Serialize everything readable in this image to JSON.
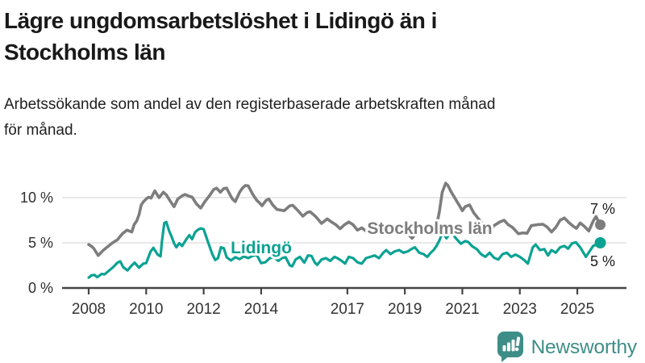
{
  "header": {
    "title_lines": [
      "Lägre ungdomsarbetslöshet i Lidingö än i",
      "Stockholms län"
    ],
    "subtitle_lines": [
      "Arbetssökande som andel av den registerbaserade arbetskraften månad",
      "för månad."
    ]
  },
  "chart_data": {
    "type": "line",
    "title": "Lägre ungdomsarbetslöshet i Lidingö än i Stockholms län",
    "xlabel": "",
    "ylabel": "",
    "grid": "horizontal",
    "legend_position": "inline-labels",
    "xlim": [
      2007.1,
      2026.7
    ],
    "ylim": [
      0,
      12
    ],
    "y_ticks": [
      {
        "value": 0,
        "label": "0 %"
      },
      {
        "value": 5,
        "label": "5 %"
      },
      {
        "value": 10,
        "label": "10 %"
      }
    ],
    "x_ticks": [
      {
        "year": 2008,
        "label": "2008"
      },
      {
        "year": 2010,
        "label": "2010"
      },
      {
        "year": 2012,
        "label": "2012"
      },
      {
        "year": 2014,
        "label": "2014"
      },
      {
        "year": 2017,
        "label": "2017"
      },
      {
        "year": 2019,
        "label": "2019"
      },
      {
        "year": 2021,
        "label": "2021"
      },
      {
        "year": 2023,
        "label": "2023"
      },
      {
        "year": 2025,
        "label": "2025"
      }
    ],
    "series": [
      {
        "name": "Stockholms län",
        "color": "#7d7d7d",
        "end_label": "7 %",
        "end_value": 7,
        "points": [
          [
            2008.0,
            4.8
          ],
          [
            2008.08,
            4.65
          ],
          [
            2008.17,
            4.4
          ],
          [
            2008.33,
            3.6
          ],
          [
            2008.5,
            4.15
          ],
          [
            2008.67,
            4.6
          ],
          [
            2008.83,
            5.0
          ],
          [
            2009.0,
            5.35
          ],
          [
            2009.17,
            6.0
          ],
          [
            2009.33,
            6.4
          ],
          [
            2009.5,
            6.2
          ],
          [
            2009.58,
            7.0
          ],
          [
            2009.67,
            7.4
          ],
          [
            2009.75,
            8.1
          ],
          [
            2009.83,
            9.2
          ],
          [
            2009.92,
            9.6
          ],
          [
            2010.0,
            9.85
          ],
          [
            2010.08,
            10.05
          ],
          [
            2010.17,
            9.95
          ],
          [
            2010.3,
            10.75
          ],
          [
            2010.45,
            10.0
          ],
          [
            2010.6,
            10.6
          ],
          [
            2010.7,
            10.3
          ],
          [
            2010.85,
            9.55
          ],
          [
            2010.97,
            9.0
          ],
          [
            2011.1,
            9.85
          ],
          [
            2011.25,
            10.2
          ],
          [
            2011.35,
            10.35
          ],
          [
            2011.5,
            10.15
          ],
          [
            2011.6,
            10.05
          ],
          [
            2011.75,
            9.3
          ],
          [
            2011.9,
            8.85
          ],
          [
            2012.05,
            9.6
          ],
          [
            2012.2,
            10.2
          ],
          [
            2012.35,
            10.9
          ],
          [
            2012.45,
            11.05
          ],
          [
            2012.58,
            10.6
          ],
          [
            2012.7,
            11.0
          ],
          [
            2012.8,
            11.05
          ],
          [
            2012.92,
            10.3
          ],
          [
            2013.0,
            9.85
          ],
          [
            2013.1,
            9.55
          ],
          [
            2013.25,
            10.6
          ],
          [
            2013.35,
            11.05
          ],
          [
            2013.45,
            11.35
          ],
          [
            2013.55,
            11.3
          ],
          [
            2013.67,
            10.6
          ],
          [
            2013.75,
            10.15
          ],
          [
            2013.85,
            9.7
          ],
          [
            2013.95,
            9.4
          ],
          [
            2014.03,
            9.1
          ],
          [
            2014.17,
            9.7
          ],
          [
            2014.27,
            9.85
          ],
          [
            2014.4,
            9.2
          ],
          [
            2014.55,
            8.7
          ],
          [
            2014.8,
            8.55
          ],
          [
            2015.0,
            9.1
          ],
          [
            2015.1,
            9.15
          ],
          [
            2015.3,
            8.5
          ],
          [
            2015.45,
            7.95
          ],
          [
            2015.6,
            8.35
          ],
          [
            2015.7,
            8.45
          ],
          [
            2015.9,
            7.9
          ],
          [
            2016.1,
            7.15
          ],
          [
            2016.3,
            7.65
          ],
          [
            2016.45,
            7.3
          ],
          [
            2016.6,
            7.0
          ],
          [
            2016.75,
            6.55
          ],
          [
            2016.9,
            7.0
          ],
          [
            2017.05,
            7.3
          ],
          [
            2017.2,
            7.0
          ],
          [
            2017.35,
            6.4
          ],
          [
            2017.5,
            6.65
          ],
          [
            2017.65,
            6.3
          ],
          [
            2017.8,
            6.6
          ],
          [
            2017.95,
            6.2
          ],
          [
            2018.1,
            6.65
          ],
          [
            2018.25,
            6.9
          ],
          [
            2018.4,
            6.6
          ],
          [
            2018.55,
            6.3
          ],
          [
            2018.7,
            6.6
          ],
          [
            2018.85,
            6.4
          ],
          [
            2019.0,
            6.15
          ],
          [
            2019.15,
            5.85
          ],
          [
            2019.25,
            5.5
          ],
          [
            2019.4,
            6.1
          ],
          [
            2019.55,
            6.4
          ],
          [
            2019.7,
            6.75
          ],
          [
            2019.85,
            6.4
          ],
          [
            2019.95,
            6.2
          ],
          [
            2020.08,
            6.6
          ],
          [
            2020.2,
            8.4
          ],
          [
            2020.3,
            10.6
          ],
          [
            2020.42,
            11.6
          ],
          [
            2020.5,
            11.35
          ],
          [
            2020.6,
            10.7
          ],
          [
            2020.75,
            9.9
          ],
          [
            2020.9,
            9.1
          ],
          [
            2021.0,
            8.55
          ],
          [
            2021.1,
            9.0
          ],
          [
            2021.25,
            9.2
          ],
          [
            2021.4,
            8.3
          ],
          [
            2021.55,
            7.7
          ],
          [
            2021.7,
            7.1
          ],
          [
            2021.85,
            6.9
          ],
          [
            2021.97,
            6.35
          ],
          [
            2022.1,
            6.9
          ],
          [
            2022.3,
            7.3
          ],
          [
            2022.45,
            7.5
          ],
          [
            2022.6,
            7.0
          ],
          [
            2022.75,
            6.7
          ],
          [
            2022.95,
            6.0
          ],
          [
            2023.1,
            6.1
          ],
          [
            2023.25,
            6.05
          ],
          [
            2023.4,
            6.9
          ],
          [
            2023.6,
            7.0
          ],
          [
            2023.8,
            7.05
          ],
          [
            2023.95,
            6.75
          ],
          [
            2024.1,
            6.2
          ],
          [
            2024.25,
            6.7
          ],
          [
            2024.4,
            7.5
          ],
          [
            2024.55,
            7.75
          ],
          [
            2024.7,
            7.25
          ],
          [
            2024.85,
            6.85
          ],
          [
            2024.97,
            6.6
          ],
          [
            2025.1,
            7.2
          ],
          [
            2025.25,
            6.8
          ],
          [
            2025.4,
            6.3
          ],
          [
            2025.55,
            7.4
          ],
          [
            2025.65,
            7.9
          ],
          [
            2025.8,
            7.0
          ]
        ]
      },
      {
        "name": "Lidingö",
        "color": "#0ba293",
        "end_label": "5 %",
        "end_value": 5,
        "points": [
          [
            2008.0,
            1.15
          ],
          [
            2008.1,
            1.4
          ],
          [
            2008.2,
            1.45
          ],
          [
            2008.3,
            1.2
          ],
          [
            2008.45,
            1.55
          ],
          [
            2008.55,
            1.5
          ],
          [
            2008.7,
            1.9
          ],
          [
            2008.85,
            2.3
          ],
          [
            2009.0,
            2.8
          ],
          [
            2009.1,
            2.95
          ],
          [
            2009.2,
            2.3
          ],
          [
            2009.35,
            1.95
          ],
          [
            2009.5,
            2.5
          ],
          [
            2009.6,
            2.8
          ],
          [
            2009.75,
            2.25
          ],
          [
            2009.9,
            2.7
          ],
          [
            2010.0,
            2.75
          ],
          [
            2010.15,
            4.0
          ],
          [
            2010.25,
            4.45
          ],
          [
            2010.4,
            3.7
          ],
          [
            2010.5,
            3.5
          ],
          [
            2010.55,
            5.2
          ],
          [
            2010.63,
            7.2
          ],
          [
            2010.7,
            7.3
          ],
          [
            2010.8,
            6.3
          ],
          [
            2010.9,
            5.55
          ],
          [
            2010.97,
            4.95
          ],
          [
            2011.05,
            4.5
          ],
          [
            2011.15,
            4.95
          ],
          [
            2011.25,
            4.65
          ],
          [
            2011.4,
            5.4
          ],
          [
            2011.5,
            5.85
          ],
          [
            2011.6,
            5.4
          ],
          [
            2011.7,
            6.15
          ],
          [
            2011.8,
            6.45
          ],
          [
            2011.9,
            6.6
          ],
          [
            2012.0,
            6.5
          ],
          [
            2012.1,
            5.55
          ],
          [
            2012.2,
            4.65
          ],
          [
            2012.3,
            3.75
          ],
          [
            2012.4,
            3.1
          ],
          [
            2012.5,
            3.3
          ],
          [
            2012.6,
            4.5
          ],
          [
            2012.7,
            4.4
          ],
          [
            2012.8,
            3.4
          ],
          [
            2012.95,
            3.05
          ],
          [
            2013.1,
            3.4
          ],
          [
            2013.25,
            3.2
          ],
          [
            2013.4,
            3.5
          ],
          [
            2013.55,
            3.3
          ],
          [
            2013.7,
            3.55
          ],
          [
            2013.85,
            3.65
          ],
          [
            2014.0,
            2.75
          ],
          [
            2014.15,
            2.85
          ],
          [
            2014.3,
            3.3
          ],
          [
            2014.45,
            3.4
          ],
          [
            2014.6,
            3.0
          ],
          [
            2014.72,
            3.3
          ],
          [
            2014.85,
            3.4
          ],
          [
            2015.0,
            2.5
          ],
          [
            2015.08,
            2.4
          ],
          [
            2015.2,
            3.15
          ],
          [
            2015.35,
            3.45
          ],
          [
            2015.5,
            2.8
          ],
          [
            2015.63,
            3.6
          ],
          [
            2015.75,
            3.55
          ],
          [
            2015.87,
            2.8
          ],
          [
            2015.95,
            2.55
          ],
          [
            2016.1,
            3.15
          ],
          [
            2016.25,
            3.3
          ],
          [
            2016.4,
            3.0
          ],
          [
            2016.55,
            3.45
          ],
          [
            2016.65,
            3.3
          ],
          [
            2016.8,
            3.0
          ],
          [
            2016.92,
            2.7
          ],
          [
            2017.05,
            3.45
          ],
          [
            2017.2,
            3.3
          ],
          [
            2017.35,
            2.85
          ],
          [
            2017.5,
            2.7
          ],
          [
            2017.65,
            3.3
          ],
          [
            2017.8,
            3.45
          ],
          [
            2017.95,
            3.6
          ],
          [
            2018.1,
            3.3
          ],
          [
            2018.25,
            3.9
          ],
          [
            2018.35,
            4.2
          ],
          [
            2018.5,
            3.75
          ],
          [
            2018.65,
            4.05
          ],
          [
            2018.8,
            4.2
          ],
          [
            2018.95,
            3.9
          ],
          [
            2019.1,
            4.05
          ],
          [
            2019.25,
            4.35
          ],
          [
            2019.35,
            4.5
          ],
          [
            2019.5,
            3.9
          ],
          [
            2019.65,
            3.75
          ],
          [
            2019.78,
            3.45
          ],
          [
            2019.9,
            3.9
          ],
          [
            2020.0,
            4.2
          ],
          [
            2020.1,
            4.65
          ],
          [
            2020.2,
            5.25
          ],
          [
            2020.32,
            6.2
          ],
          [
            2020.45,
            5.5
          ],
          [
            2020.55,
            6.0
          ],
          [
            2020.68,
            5.9
          ],
          [
            2020.8,
            5.4
          ],
          [
            2020.95,
            4.9
          ],
          [
            2021.1,
            5.2
          ],
          [
            2021.2,
            5.1
          ],
          [
            2021.35,
            4.6
          ],
          [
            2021.5,
            4.3
          ],
          [
            2021.65,
            3.75
          ],
          [
            2021.8,
            3.45
          ],
          [
            2021.95,
            3.9
          ],
          [
            2022.1,
            3.35
          ],
          [
            2022.25,
            3.15
          ],
          [
            2022.4,
            3.75
          ],
          [
            2022.55,
            3.9
          ],
          [
            2022.7,
            3.45
          ],
          [
            2022.85,
            3.7
          ],
          [
            2023.0,
            3.45
          ],
          [
            2023.15,
            3.1
          ],
          [
            2023.28,
            2.7
          ],
          [
            2023.45,
            4.5
          ],
          [
            2023.55,
            4.8
          ],
          [
            2023.7,
            4.2
          ],
          [
            2023.85,
            4.3
          ],
          [
            2023.98,
            3.6
          ],
          [
            2024.1,
            4.2
          ],
          [
            2024.25,
            3.9
          ],
          [
            2024.4,
            4.5
          ],
          [
            2024.55,
            4.65
          ],
          [
            2024.68,
            4.35
          ],
          [
            2024.82,
            4.95
          ],
          [
            2024.95,
            5.05
          ],
          [
            2025.1,
            4.5
          ],
          [
            2025.3,
            3.45
          ],
          [
            2025.55,
            4.65
          ],
          [
            2025.8,
            5.0
          ]
        ]
      }
    ]
  },
  "logo": {
    "text": "Newsworthy",
    "color": "#3e8e88"
  }
}
